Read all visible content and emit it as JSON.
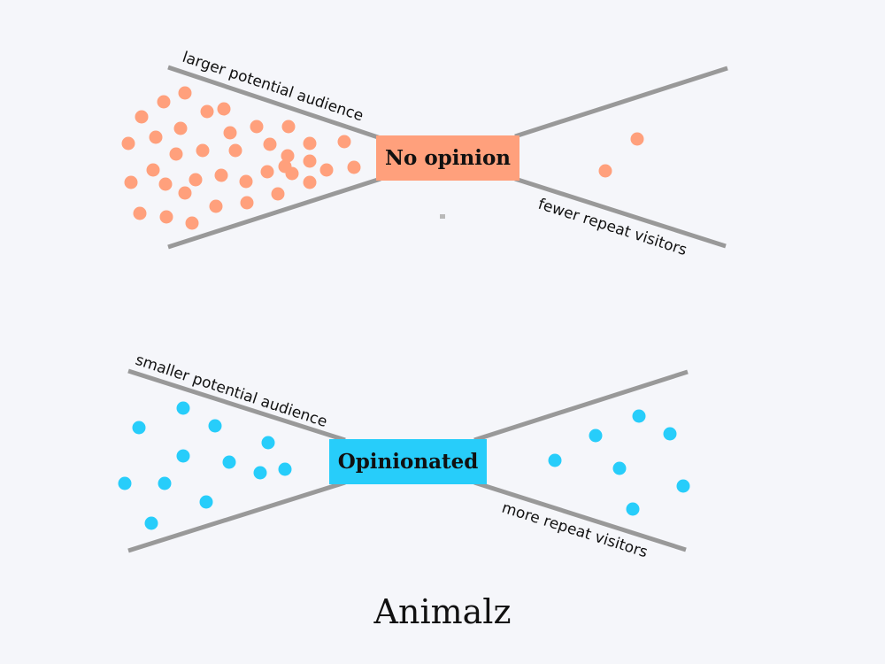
{
  "colors": {
    "background": "#f5f6fa",
    "line": "#999999",
    "no_opinion": "#ffa07c",
    "opinionated": "#27cdfa"
  },
  "top": {
    "label": "No opinion",
    "left_text": "larger potential audience",
    "right_text": "fewer repeat visitors",
    "left_dots": 38,
    "right_dots": 2
  },
  "bottom": {
    "label": "Opinionated",
    "left_text": "smaller potential audience",
    "right_text": "more repeat visitors",
    "left_dots": 13,
    "right_dots": 8
  },
  "brand": "Animalz"
}
